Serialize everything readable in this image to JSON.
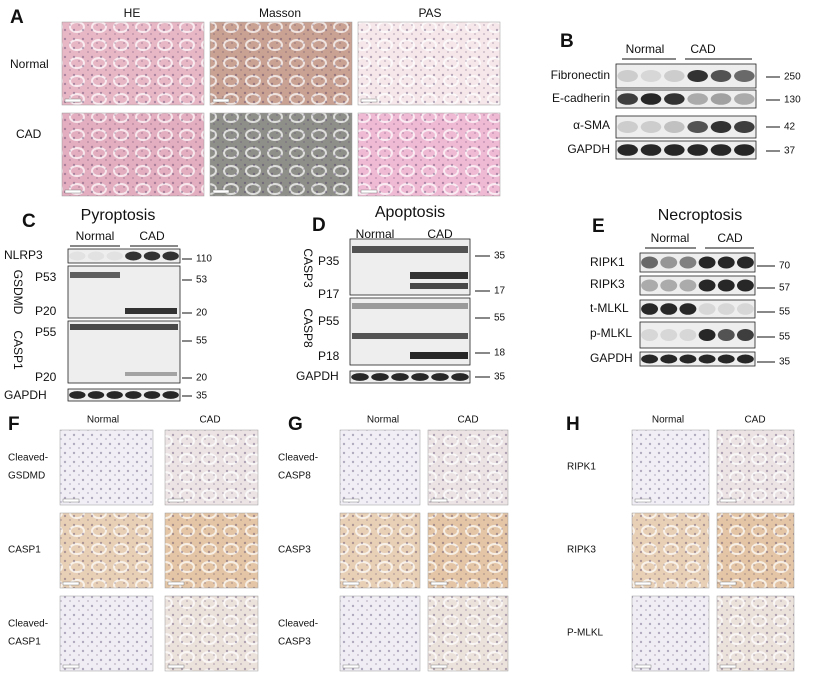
{
  "panels": {
    "A": {
      "label": "A",
      "columns": [
        "HE",
        "Masson",
        "PAS"
      ],
      "rows": [
        "Normal",
        "CAD"
      ]
    },
    "B": {
      "label": "B",
      "groups": [
        "Normal",
        "CAD"
      ],
      "bands": [
        {
          "name": "Fibronectin",
          "marker": 250
        },
        {
          "name": "E-cadherin",
          "marker": 130
        },
        {
          "name": "α-SMA",
          "marker": 42
        },
        {
          "name": "GAPDH",
          "marker": 37
        }
      ]
    },
    "C": {
      "label": "C",
      "title": "Pyroptosis",
      "groups": [
        "Normal",
        "CAD"
      ],
      "rows": [
        {
          "name": "NLRP3",
          "marker": 110
        },
        {
          "group": "GSDMD",
          "bands": [
            "P53",
            "P20"
          ],
          "markers": [
            53,
            20
          ]
        },
        {
          "group": "CASP1",
          "bands": [
            "P55",
            "P20"
          ],
          "markers": [
            55,
            20
          ]
        },
        {
          "name": "GAPDH",
          "marker": 35
        }
      ]
    },
    "D": {
      "label": "D",
      "title": "Apoptosis",
      "groups": [
        "Normal",
        "CAD"
      ],
      "rows": [
        {
          "group": "CASP3",
          "bands": [
            "P35",
            "P17"
          ],
          "markers": [
            35,
            17
          ]
        },
        {
          "group": "CASP8",
          "bands": [
            "P55",
            "P18"
          ],
          "markers": [
            55,
            18
          ]
        },
        {
          "name": "GAPDH",
          "marker": 35
        }
      ]
    },
    "E": {
      "label": "E",
      "title": "Necroptosis",
      "groups": [
        "Normal",
        "CAD"
      ],
      "bands": [
        {
          "name": "RIPK1",
          "marker": 70
        },
        {
          "name": "RIPK3",
          "marker": 57
        },
        {
          "name": "t-MLKL",
          "marker": 55
        },
        {
          "name": "p-MLKL",
          "marker": 55
        },
        {
          "name": "GAPDH",
          "marker": 35
        }
      ]
    },
    "F": {
      "label": "F",
      "columns": [
        "Normal",
        "CAD"
      ],
      "rows": [
        [
          "Cleaved-",
          "GSDMD"
        ],
        [
          "CASP1"
        ],
        [
          "Cleaved-",
          "CASP1"
        ]
      ]
    },
    "G": {
      "label": "G",
      "columns": [
        "Normal",
        "CAD"
      ],
      "rows": [
        [
          "Cleaved-",
          "CASP8"
        ],
        [
          "CASP3"
        ],
        [
          "Cleaved-",
          "CASP3"
        ]
      ]
    },
    "H": {
      "label": "H",
      "columns": [
        "Normal",
        "CAD"
      ],
      "rows": [
        [
          "RIPK1"
        ],
        [
          "RIPK3"
        ],
        [
          "P-MLKL"
        ]
      ]
    }
  }
}
